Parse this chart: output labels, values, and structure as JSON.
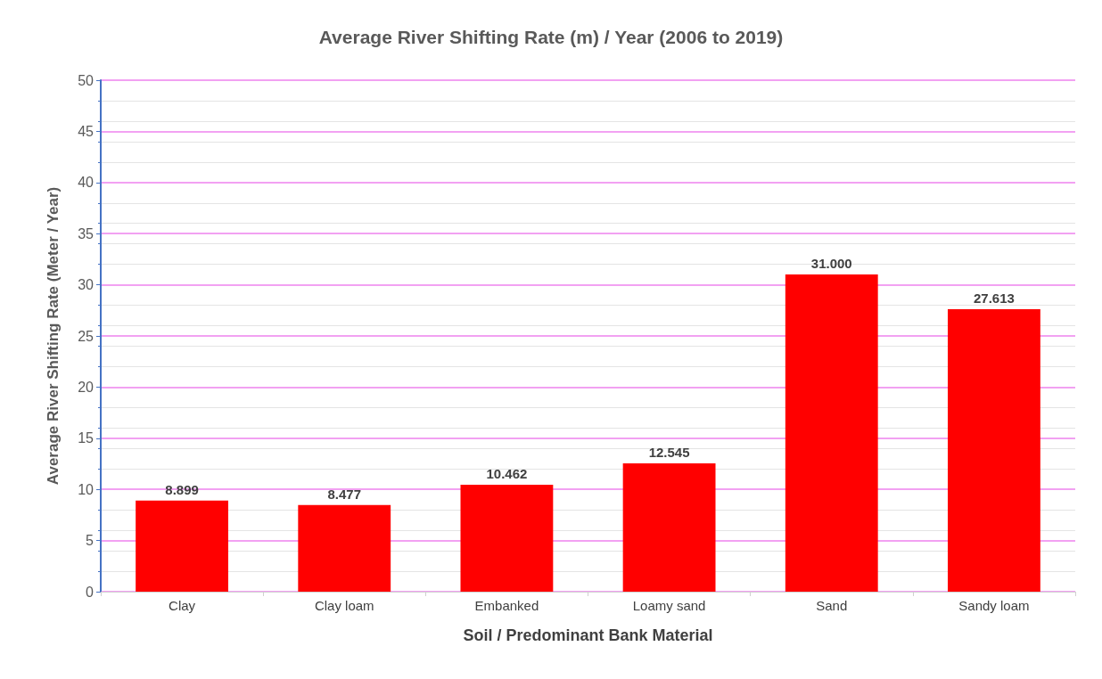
{
  "chart_data": {
    "type": "bar",
    "title": "Average River Shifting Rate (m) / Year (2006 to 2019)",
    "xlabel": "Soil / Predominant Bank Material",
    "ylabel": "Average River Shifting Rate (Meter / Year)",
    "categories": [
      "Clay",
      "Clay loam",
      "Embanked",
      "Loamy sand",
      "Sand",
      "Sandy loam"
    ],
    "values": [
      8.899,
      8.477,
      10.462,
      12.545,
      31.0,
      27.613
    ],
    "value_labels": [
      "8.899",
      "8.477",
      "10.462",
      "12.545",
      "31.000",
      "27.613"
    ],
    "color": "#ff0000",
    "ylim": [
      0,
      50
    ],
    "yticks": [
      0,
      5,
      10,
      15,
      20,
      25,
      30,
      35,
      40,
      45,
      50
    ],
    "grid": "y"
  }
}
